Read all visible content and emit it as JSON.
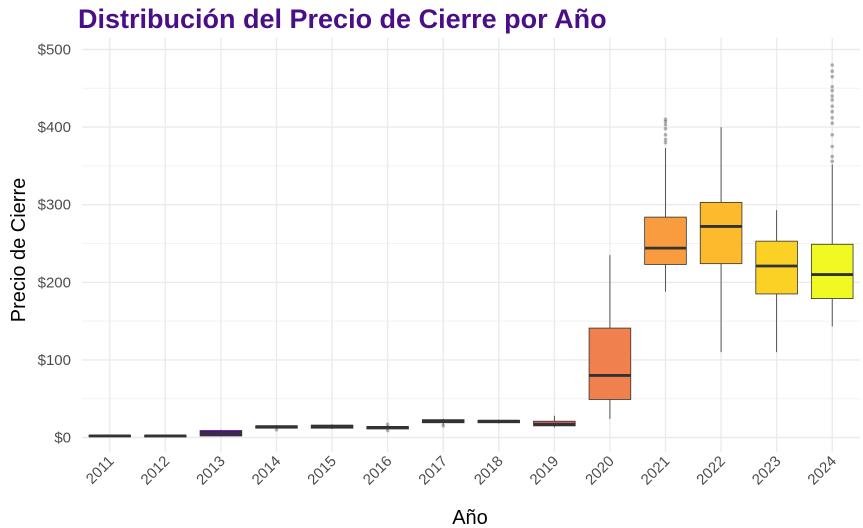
{
  "chart_data": {
    "type": "box",
    "title": "Distribución del Precio de Cierre por Año",
    "xlabel": "Año",
    "ylabel": "Precio de Cierre",
    "ylim": [
      -15,
      510
    ],
    "y_ticks": [
      {
        "value": 0,
        "label": "$0"
      },
      {
        "value": 100,
        "label": "$100"
      },
      {
        "value": 200,
        "label": "$200"
      },
      {
        "value": 300,
        "label": "$300"
      },
      {
        "value": 400,
        "label": "$400"
      },
      {
        "value": 500,
        "label": "$500"
      }
    ],
    "grid": true,
    "legend": "none",
    "categories": [
      "2011",
      "2012",
      "2013",
      "2014",
      "2015",
      "2016",
      "2017",
      "2018",
      "2019",
      "2020",
      "2021",
      "2022",
      "2023",
      "2024"
    ],
    "boxes": [
      {
        "year": "2011",
        "min": 1,
        "q1": 1.5,
        "median": 2,
        "q3": 2.5,
        "max": 3,
        "outliers": [],
        "color": "#0d0887"
      },
      {
        "year": "2012",
        "min": 1.5,
        "q1": 1.5,
        "median": 2,
        "q3": 2.3,
        "max": 2.5,
        "outliers": [],
        "color": "#3b049a"
      },
      {
        "year": "2013",
        "min": 1.5,
        "q1": 2,
        "median": 5,
        "q3": 9,
        "max": 10,
        "outliers": [],
        "color": "#5c01a6"
      },
      {
        "year": "2014",
        "min": 11,
        "q1": 12,
        "median": 14,
        "q3": 15,
        "max": 16,
        "outliers": [
          10
        ],
        "color": "#7e03a8"
      },
      {
        "year": "2015",
        "min": 11,
        "q1": 12,
        "median": 14,
        "q3": 16,
        "max": 17,
        "outliers": [],
        "color": "#9c179e"
      },
      {
        "year": "2016",
        "min": 10,
        "q1": 11,
        "median": 13,
        "q3": 14,
        "max": 16,
        "outliers": [
          9,
          17
        ],
        "color": "#b52f8c"
      },
      {
        "year": "2017",
        "min": 16,
        "q1": 19,
        "median": 21,
        "q3": 23,
        "max": 24,
        "outliers": [
          15
        ],
        "color": "#cc4778"
      },
      {
        "year": "2018",
        "min": 18,
        "q1": 19,
        "median": 21,
        "q3": 22,
        "max": 23,
        "outliers": [],
        "color": "#de5f65"
      },
      {
        "year": "2019",
        "min": 13,
        "q1": 15,
        "median": 17,
        "q3": 21,
        "max": 28,
        "outliers": [],
        "color": "#de5f65"
      },
      {
        "year": "2020",
        "min": 24,
        "q1": 49,
        "median": 80,
        "q3": 141,
        "max": 235,
        "outliers": [],
        "color": "#f0804e"
      },
      {
        "year": "2021",
        "min": 188,
        "q1": 223,
        "median": 244,
        "q3": 284,
        "max": 373,
        "outliers": [
          380,
          384,
          390,
          398,
          403,
          407,
          410
        ],
        "color": "#f89c3f"
      },
      {
        "year": "2022",
        "min": 110,
        "q1": 224,
        "median": 272,
        "q3": 303,
        "max": 400,
        "outliers": [],
        "color": "#fdba2c"
      },
      {
        "year": "2023",
        "min": 110,
        "q1": 185,
        "median": 221,
        "q3": 253,
        "max": 293,
        "outliers": [],
        "color": "#fcd125"
      },
      {
        "year": "2024",
        "min": 143,
        "q1": 179,
        "median": 210,
        "q3": 249,
        "max": 352,
        "outliers": [
          356,
          362,
          375,
          390,
          405,
          412,
          420,
          427,
          435,
          440,
          447,
          452,
          465,
          472,
          480
        ],
        "color": "#f0f921"
      }
    ]
  }
}
